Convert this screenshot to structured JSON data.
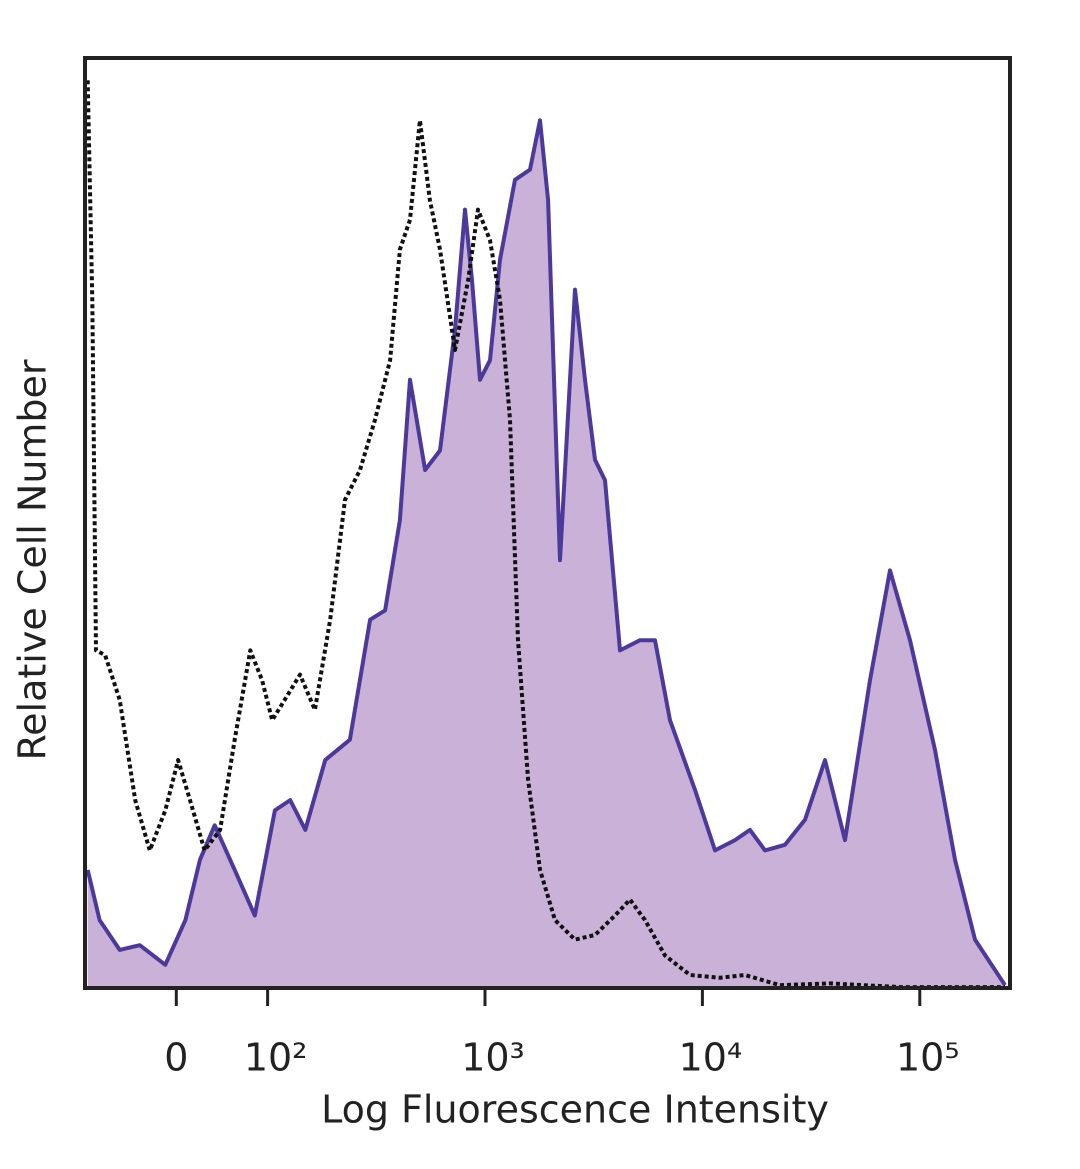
{
  "chart_data": {
    "type": "histogram-overlay",
    "x_label": "Log Fluorescence Intensity",
    "y_label": "Relative Cell Number",
    "xscale": "biexponential",
    "xlim": [
      -100,
      260000
    ],
    "ylim": [
      0,
      100
    ],
    "xticks": [
      0,
      {
        "value": 100,
        "label": "10²"
      },
      {
        "value": 1000,
        "label": "10³"
      },
      {
        "value": 10000,
        "label": "10⁴"
      },
      {
        "value": 100000,
        "label": "10⁵"
      }
    ],
    "series": [
      {
        "color": "#4b3a9c",
        "fill": "#c9b1d8",
        "line_style": "solid",
        "x": [
          -97,
          -84,
          -62,
          -40,
          -12,
          10,
          26,
          42,
          64,
          86,
          108,
          127,
          149,
          184,
          239,
          296,
          347,
          406,
          452,
          530,
          621,
          728,
          809,
          871,
          948,
          1054,
          1172,
          1374,
          1611,
          1791,
          1950,
          2213,
          2594,
          2884,
          3206,
          3565,
          4178,
          5164,
          6053,
          7096,
          9247,
          11430,
          14130,
          16560,
          19410,
          23990,
          29650,
          36640,
          45290,
          59020,
          72950,
          90160,
          117500,
          145200,
          179500,
          246600
        ],
        "values": [
          12.7,
          7.3,
          4.1,
          4.6,
          2.5,
          7.3,
          13.8,
          17.5,
          12.7,
          7.8,
          19.1,
          20.2,
          17.0,
          24.5,
          26.7,
          39.6,
          40.6,
          50.3,
          65.4,
          55.7,
          57.8,
          70.8,
          83.7,
          76.1,
          65.4,
          67.5,
          78.3,
          86.9,
          88.0,
          93.3,
          84.7,
          46.0,
          75.1,
          65.4,
          56.8,
          54.6,
          36.3,
          37.4,
          37.4,
          28.8,
          21.3,
          14.8,
          15.9,
          17.0,
          14.8,
          15.4,
          18.1,
          24.5,
          15.9,
          33.1,
          44.9,
          37.4,
          25.6,
          13.8,
          5.2,
          0.3
        ]
      },
      {
        "color": "#111111",
        "fill": "none",
        "line_style": "dotted",
        "x": [
          -97,
          -92,
          -88,
          -78,
          -62,
          -45,
          -29,
          -12,
          2,
          15,
          31,
          48,
          64,
          81,
          94,
          105,
          120,
          141,
          165,
          194,
          227,
          266,
          312,
          366,
          406,
          452,
          502,
          558,
          621,
          728,
          836,
          929,
          1054,
          1172,
          1303,
          1419,
          1578,
          1791,
          2099,
          2594,
          3206,
          3963,
          4645,
          5445,
          6730,
          8770,
          12050,
          15700,
          22750,
          38640,
          81100,
          246600
        ],
        "values": [
          97.6,
          74.0,
          36.3,
          35.8,
          31.0,
          20.2,
          14.8,
          19.1,
          24.5,
          20.2,
          14.8,
          17.0,
          26.7,
          36.3,
          33.1,
          28.8,
          31.0,
          33.7,
          29.9,
          39.6,
          52.5,
          55.7,
          61.1,
          67.5,
          79.4,
          82.6,
          93.3,
          84.7,
          79.4,
          68.6,
          76.1,
          83.7,
          80.4,
          74.0,
          61.1,
          37.4,
          22.4,
          12.7,
          7.3,
          5.2,
          5.7,
          7.8,
          9.5,
          7.3,
          3.5,
          1.4,
          1.1,
          1.4,
          0.3,
          0.5,
          0.1,
          0.1
        ]
      }
    ]
  }
}
